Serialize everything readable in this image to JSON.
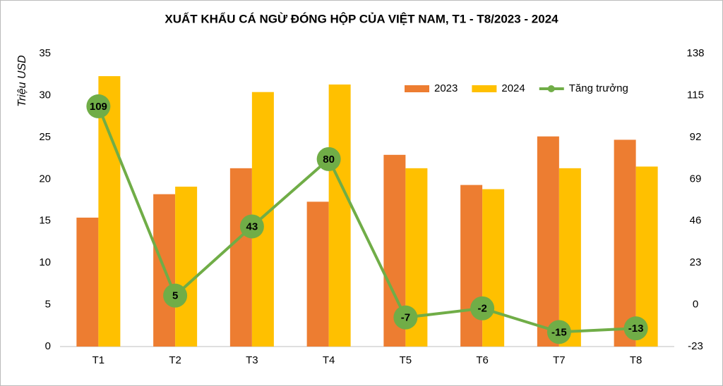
{
  "chart_data": {
    "type": "bar-line",
    "title": "XUẤT KHẨU CÁ NGỪ ĐÓNG HỘP CỦA VIỆT NAM, T1 - T8/2023 - 2024",
    "y_label": "Triệu USD",
    "categories": [
      "T1",
      "T2",
      "T3",
      "T4",
      "T5",
      "T6",
      "T7",
      "T8"
    ],
    "series": [
      {
        "name": "2023",
        "type": "bar",
        "color": "#ED7D31",
        "values": [
          15.4,
          18.2,
          21.3,
          17.3,
          22.9,
          19.3,
          25.1,
          24.7
        ]
      },
      {
        "name": "2024",
        "type": "bar",
        "color": "#FFC000",
        "values": [
          32.3,
          19.1,
          30.4,
          31.3,
          21.3,
          18.8,
          21.3,
          21.5
        ]
      },
      {
        "name": "Tăng trưởng",
        "type": "line",
        "axis": "y2",
        "color": "#70AD47",
        "values": [
          109,
          5,
          43,
          80,
          -7,
          -2,
          -15,
          -13
        ]
      }
    ],
    "ylim": [
      0,
      35
    ],
    "yticks": [
      0,
      5,
      10,
      15,
      20,
      25,
      30,
      35
    ],
    "y2lim": [
      -23,
      138
    ],
    "y2ticks": [
      -23,
      0,
      23,
      46,
      69,
      92,
      115,
      138
    ],
    "grid": false,
    "legend": "top-right"
  }
}
